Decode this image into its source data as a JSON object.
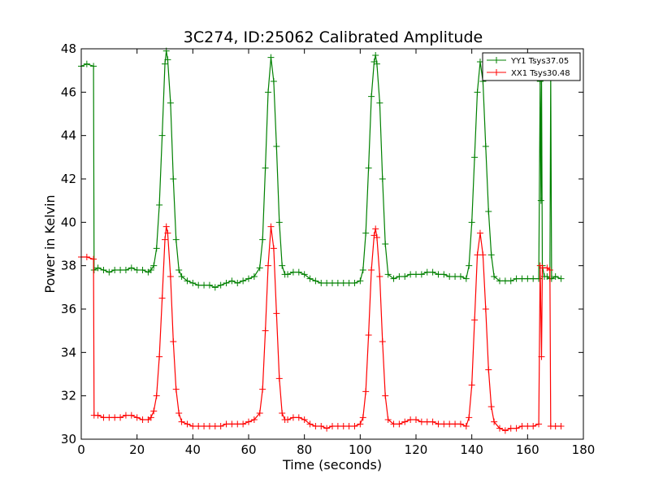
{
  "chart_data": {
    "type": "line",
    "title": "3C274, ID:25062 Calibrated Amplitude",
    "xlabel": "Time (seconds)",
    "ylabel": "Power in Kelvin",
    "xlim": [
      0,
      180
    ],
    "ylim": [
      30,
      48
    ],
    "xticks": [
      0,
      20,
      40,
      60,
      80,
      100,
      120,
      140,
      160,
      180
    ],
    "yticks": [
      30,
      32,
      34,
      36,
      38,
      40,
      42,
      44,
      46,
      48
    ],
    "grid": false,
    "legend_position": "top-right",
    "marker": "+",
    "series": [
      {
        "name": "YY1 Tsys37.05",
        "color": "#008000",
        "points": [
          [
            0,
            47.2
          ],
          [
            2,
            47.3
          ],
          [
            4.4,
            47.2
          ],
          [
            4.6,
            37.8
          ],
          [
            6,
            37.9
          ],
          [
            8,
            37.8
          ],
          [
            10,
            37.7
          ],
          [
            12,
            37.8
          ],
          [
            14,
            37.8
          ],
          [
            16,
            37.8
          ],
          [
            18,
            37.9
          ],
          [
            20,
            37.8
          ],
          [
            22,
            37.8
          ],
          [
            24,
            37.7
          ],
          [
            25,
            37.8
          ],
          [
            26,
            38.0
          ],
          [
            27,
            38.8
          ],
          [
            28,
            40.8
          ],
          [
            29,
            44.0
          ],
          [
            30,
            47.3
          ],
          [
            30.5,
            47.9
          ],
          [
            31,
            47.5
          ],
          [
            32,
            45.5
          ],
          [
            33,
            42.0
          ],
          [
            34,
            39.2
          ],
          [
            35,
            37.8
          ],
          [
            36,
            37.5
          ],
          [
            38,
            37.3
          ],
          [
            40,
            37.2
          ],
          [
            42,
            37.1
          ],
          [
            44,
            37.1
          ],
          [
            46,
            37.1
          ],
          [
            48,
            37.0
          ],
          [
            50,
            37.1
          ],
          [
            52,
            37.2
          ],
          [
            54,
            37.3
          ],
          [
            56,
            37.2
          ],
          [
            58,
            37.3
          ],
          [
            60,
            37.4
          ],
          [
            62,
            37.5
          ],
          [
            64,
            37.9
          ],
          [
            65,
            39.2
          ],
          [
            66,
            42.5
          ],
          [
            67,
            46.0
          ],
          [
            68,
            47.6
          ],
          [
            69,
            46.5
          ],
          [
            70,
            43.5
          ],
          [
            71,
            40.0
          ],
          [
            72,
            38.0
          ],
          [
            73,
            37.6
          ],
          [
            74,
            37.6
          ],
          [
            76,
            37.7
          ],
          [
            78,
            37.7
          ],
          [
            80,
            37.6
          ],
          [
            82,
            37.4
          ],
          [
            84,
            37.3
          ],
          [
            86,
            37.2
          ],
          [
            88,
            37.2
          ],
          [
            90,
            37.2
          ],
          [
            92,
            37.2
          ],
          [
            94,
            37.2
          ],
          [
            96,
            37.2
          ],
          [
            98,
            37.2
          ],
          [
            100,
            37.3
          ],
          [
            101,
            37.8
          ],
          [
            102,
            39.5
          ],
          [
            103,
            42.5
          ],
          [
            104,
            45.8
          ],
          [
            105,
            47.4
          ],
          [
            105.5,
            47.7
          ],
          [
            106,
            47.3
          ],
          [
            107,
            45.5
          ],
          [
            108,
            42.0
          ],
          [
            109,
            39.0
          ],
          [
            110,
            37.6
          ],
          [
            112,
            37.4
          ],
          [
            114,
            37.5
          ],
          [
            116,
            37.5
          ],
          [
            118,
            37.6
          ],
          [
            120,
            37.6
          ],
          [
            122,
            37.6
          ],
          [
            124,
            37.7
          ],
          [
            126,
            37.7
          ],
          [
            128,
            37.6
          ],
          [
            130,
            37.6
          ],
          [
            132,
            37.5
          ],
          [
            134,
            37.5
          ],
          [
            136,
            37.5
          ],
          [
            138,
            37.4
          ],
          [
            139,
            38.0
          ],
          [
            140,
            40.0
          ],
          [
            141,
            43.0
          ],
          [
            142,
            46.0
          ],
          [
            143,
            47.4
          ],
          [
            144,
            46.5
          ],
          [
            145,
            43.5
          ],
          [
            146,
            40.5
          ],
          [
            147,
            38.5
          ],
          [
            148,
            37.5
          ],
          [
            150,
            37.3
          ],
          [
            152,
            37.3
          ],
          [
            154,
            37.3
          ],
          [
            156,
            37.4
          ],
          [
            158,
            37.4
          ],
          [
            160,
            37.4
          ],
          [
            162,
            37.4
          ],
          [
            164,
            37.4
          ],
          [
            164.5,
            46.5
          ],
          [
            164.8,
            41.0
          ],
          [
            165,
            46.8
          ],
          [
            165.3,
            38.0
          ],
          [
            166,
            37.5
          ],
          [
            167,
            37.5
          ],
          [
            168,
            37.4
          ],
          [
            168.3,
            46.8
          ],
          [
            168.6,
            37.4
          ],
          [
            170,
            37.5
          ],
          [
            172,
            37.4
          ]
        ]
      },
      {
        "name": "XX1 Tsys30.48",
        "color": "#ff0000",
        "points": [
          [
            0,
            38.4
          ],
          [
            2,
            38.4
          ],
          [
            4.4,
            38.3
          ],
          [
            4.6,
            31.1
          ],
          [
            6,
            31.1
          ],
          [
            8,
            31.0
          ],
          [
            10,
            31.0
          ],
          [
            12,
            31.0
          ],
          [
            14,
            31.0
          ],
          [
            16,
            31.1
          ],
          [
            18,
            31.1
          ],
          [
            20,
            31.0
          ],
          [
            22,
            30.9
          ],
          [
            24,
            30.9
          ],
          [
            25,
            31.0
          ],
          [
            26,
            31.3
          ],
          [
            27,
            32.0
          ],
          [
            28,
            33.8
          ],
          [
            29,
            36.5
          ],
          [
            30,
            39.2
          ],
          [
            30.5,
            39.8
          ],
          [
            31,
            39.5
          ],
          [
            32,
            37.5
          ],
          [
            33,
            34.5
          ],
          [
            34,
            32.3
          ],
          [
            35,
            31.2
          ],
          [
            36,
            30.8
          ],
          [
            38,
            30.7
          ],
          [
            40,
            30.6
          ],
          [
            42,
            30.6
          ],
          [
            44,
            30.6
          ],
          [
            46,
            30.6
          ],
          [
            48,
            30.6
          ],
          [
            50,
            30.6
          ],
          [
            52,
            30.7
          ],
          [
            54,
            30.7
          ],
          [
            56,
            30.7
          ],
          [
            58,
            30.7
          ],
          [
            60,
            30.8
          ],
          [
            62,
            30.9
          ],
          [
            64,
            31.2
          ],
          [
            65,
            32.3
          ],
          [
            66,
            35.0
          ],
          [
            67,
            38.0
          ],
          [
            68,
            39.8
          ],
          [
            69,
            38.8
          ],
          [
            70,
            35.8
          ],
          [
            71,
            32.8
          ],
          [
            72,
            31.2
          ],
          [
            73,
            30.9
          ],
          [
            74,
            30.9
          ],
          [
            76,
            31.0
          ],
          [
            78,
            31.0
          ],
          [
            80,
            30.9
          ],
          [
            82,
            30.7
          ],
          [
            84,
            30.6
          ],
          [
            86,
            30.6
          ],
          [
            88,
            30.5
          ],
          [
            90,
            30.6
          ],
          [
            92,
            30.6
          ],
          [
            94,
            30.6
          ],
          [
            96,
            30.6
          ],
          [
            98,
            30.6
          ],
          [
            100,
            30.7
          ],
          [
            101,
            31.0
          ],
          [
            102,
            32.2
          ],
          [
            103,
            34.8
          ],
          [
            104,
            37.8
          ],
          [
            105,
            39.4
          ],
          [
            105.5,
            39.7
          ],
          [
            106,
            39.3
          ],
          [
            107,
            37.5
          ],
          [
            108,
            34.5
          ],
          [
            109,
            32.0
          ],
          [
            110,
            30.9
          ],
          [
            112,
            30.7
          ],
          [
            114,
            30.7
          ],
          [
            116,
            30.8
          ],
          [
            118,
            30.9
          ],
          [
            120,
            30.9
          ],
          [
            122,
            30.8
          ],
          [
            124,
            30.8
          ],
          [
            126,
            30.8
          ],
          [
            128,
            30.7
          ],
          [
            130,
            30.7
          ],
          [
            132,
            30.7
          ],
          [
            134,
            30.7
          ],
          [
            136,
            30.7
          ],
          [
            138,
            30.6
          ],
          [
            139,
            31.0
          ],
          [
            140,
            32.5
          ],
          [
            141,
            35.5
          ],
          [
            142,
            38.5
          ],
          [
            143,
            39.5
          ],
          [
            144,
            38.5
          ],
          [
            145,
            36.0
          ],
          [
            146,
            33.2
          ],
          [
            147,
            31.5
          ],
          [
            148,
            30.8
          ],
          [
            150,
            30.5
          ],
          [
            152,
            30.4
          ],
          [
            154,
            30.5
          ],
          [
            156,
            30.5
          ],
          [
            158,
            30.6
          ],
          [
            160,
            30.6
          ],
          [
            162,
            30.6
          ],
          [
            164,
            30.7
          ],
          [
            164.5,
            38.0
          ],
          [
            165,
            33.8
          ],
          [
            165.3,
            37.9
          ],
          [
            167,
            37.9
          ],
          [
            168,
            37.8
          ],
          [
            168.3,
            30.6
          ],
          [
            170,
            30.6
          ],
          [
            172,
            30.6
          ]
        ]
      }
    ]
  }
}
